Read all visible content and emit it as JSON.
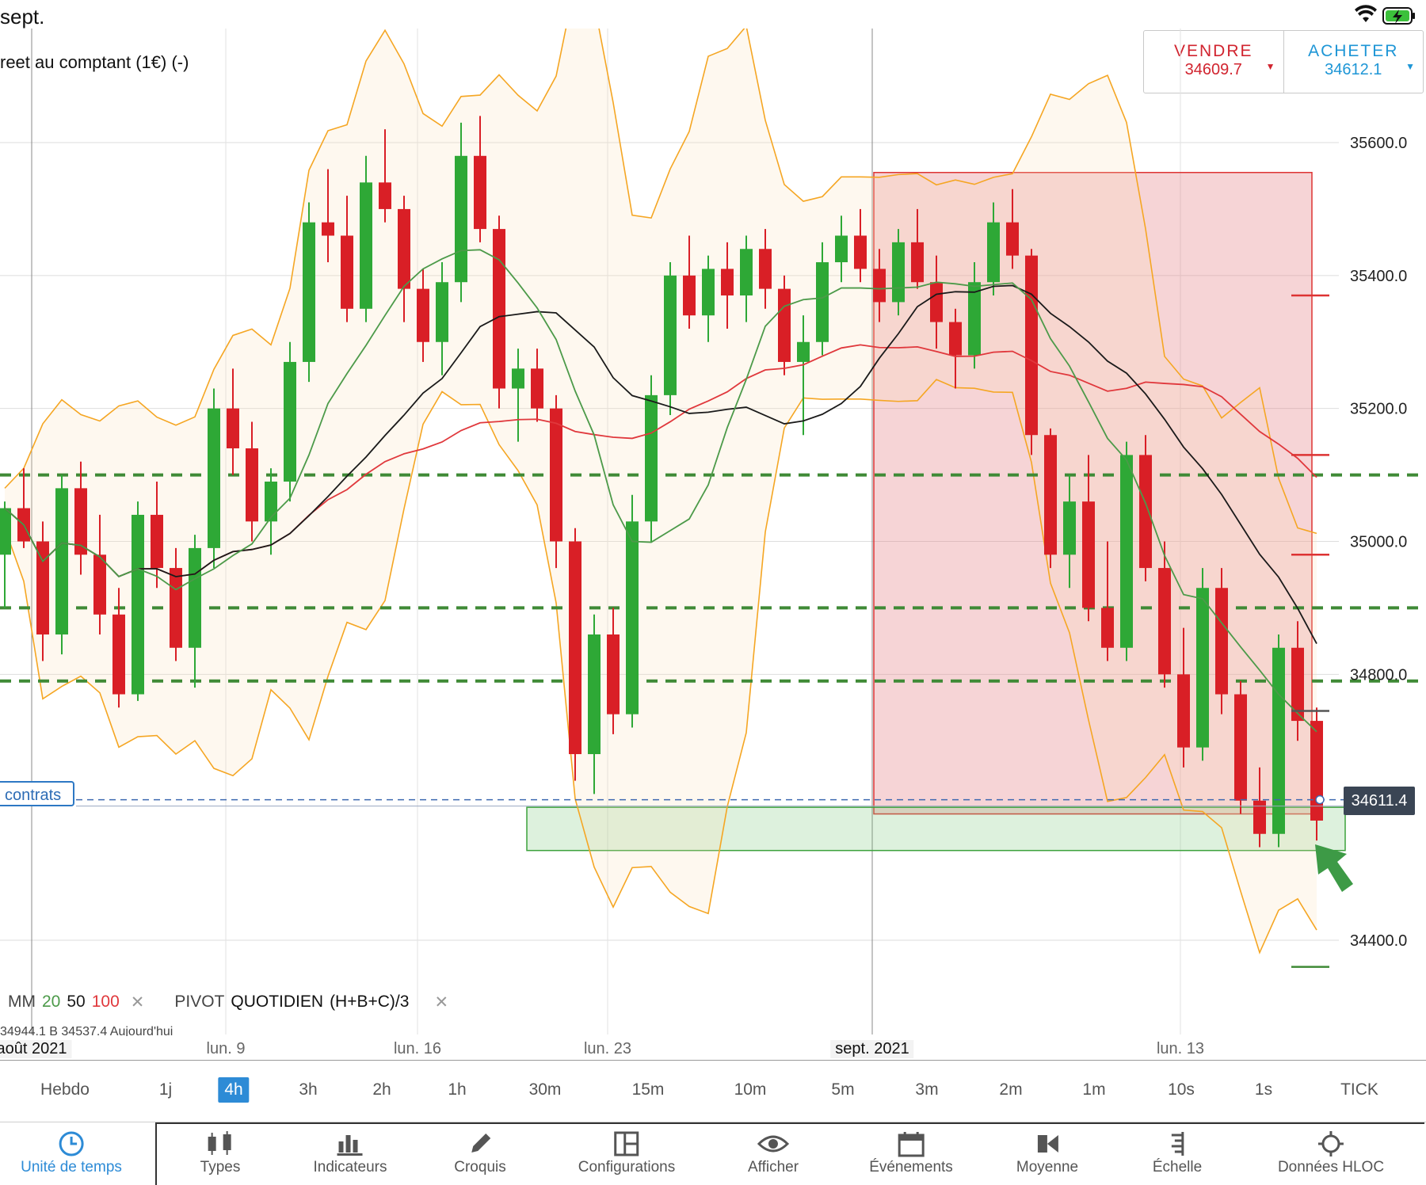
{
  "status": {
    "time": "sept."
  },
  "instrument": {
    "name": "reet au comptant (1€) (-)"
  },
  "trade": {
    "sell_label": "VENDRE",
    "sell_price": "34609.7",
    "buy_label": "ACHETER",
    "buy_price": "34612.1"
  },
  "current_price": "34611.4",
  "contracts_label": "contrats",
  "indicators": {
    "ma_label": "MM",
    "ma_20": "20",
    "ma_50": "50",
    "ma_100": "100",
    "pivot_label": "PIVOT",
    "pivot_period": "QUOTIDIEN",
    "pivot_formula": "(H+B+C)/3",
    "remove": "✕",
    "hloc_info": "34944.1   B 34537.4   Aujourd'hui"
  },
  "date_axis": [
    "août 2021",
    "lun. 9",
    "lun. 16",
    "lun. 23",
    "sept. 2021",
    "lun. 13"
  ],
  "timeframes": [
    "Hebdo",
    "1j",
    "4h",
    "3h",
    "2h",
    "1h",
    "30m",
    "15m",
    "10m",
    "5m",
    "3m",
    "2m",
    "1m",
    "10s",
    "1s",
    "TICK"
  ],
  "timeframe_selected": "4h",
  "toolbar": [
    "Unité de temps",
    "Types",
    "Indicateurs",
    "Croquis",
    "Configurations",
    "Afficher",
    "Événements",
    "Moyenne",
    "Échelle",
    "Données HLOC"
  ],
  "colors": {
    "bull": "#2ea836",
    "bear": "#d91f26",
    "bollinger": "#f5a623",
    "ma20": "#4c9a49",
    "ma50": "#1a1a1a",
    "ma100": "#e0383c",
    "accent": "#2d8bd6"
  },
  "chart_data": {
    "type": "candlestick",
    "timeframe": "4h",
    "y_ticks": [
      35600.0,
      35400.0,
      35200.0,
      35000.0,
      34800.0,
      34400.0
    ],
    "ylim": [
      34300,
      35780
    ],
    "pivot_levels": [
      35100,
      34900,
      34790
    ],
    "sell_zone": [
      34590,
      35555
    ],
    "demand_zone": [
      34535,
      34600
    ],
    "current_price": 34611.4,
    "candles_ohlc": [
      [
        34980,
        35060,
        34900,
        35050
      ],
      [
        35050,
        35110,
        34990,
        35000
      ],
      [
        35000,
        35030,
        34820,
        34860
      ],
      [
        34860,
        35100,
        34830,
        35080
      ],
      [
        35080,
        35120,
        34950,
        34980
      ],
      [
        34980,
        35040,
        34860,
        34890
      ],
      [
        34890,
        34930,
        34750,
        34770
      ],
      [
        34770,
        35060,
        34760,
        35040
      ],
      [
        35040,
        35090,
        34930,
        34960
      ],
      [
        34960,
        34990,
        34820,
        34840
      ],
      [
        34840,
        35010,
        34780,
        34990
      ],
      [
        34990,
        35230,
        34960,
        35200
      ],
      [
        35200,
        35260,
        35100,
        35140
      ],
      [
        35140,
        35180,
        35000,
        35030
      ],
      [
        35030,
        35110,
        34980,
        35090
      ],
      [
        35090,
        35300,
        35060,
        35270
      ],
      [
        35270,
        35510,
        35240,
        35480
      ],
      [
        35480,
        35560,
        35420,
        35460
      ],
      [
        35460,
        35520,
        35330,
        35350
      ],
      [
        35350,
        35580,
        35330,
        35540
      ],
      [
        35540,
        35620,
        35480,
        35500
      ],
      [
        35500,
        35520,
        35330,
        35380
      ],
      [
        35380,
        35410,
        35270,
        35300
      ],
      [
        35300,
        35420,
        35250,
        35390
      ],
      [
        35390,
        35630,
        35360,
        35580
      ],
      [
        35580,
        35640,
        35450,
        35470
      ],
      [
        35470,
        35490,
        35200,
        35230
      ],
      [
        35230,
        35290,
        35150,
        35260
      ],
      [
        35260,
        35290,
        35180,
        35200
      ],
      [
        35200,
        35220,
        34960,
        35000
      ],
      [
        35000,
        35020,
        34640,
        34680
      ],
      [
        34680,
        34890,
        34620,
        34860
      ],
      [
        34860,
        34900,
        34710,
        34740
      ],
      [
        34740,
        35070,
        34720,
        35030
      ],
      [
        35030,
        35250,
        35000,
        35220
      ],
      [
        35220,
        35420,
        35190,
        35400
      ],
      [
        35400,
        35460,
        35320,
        35340
      ],
      [
        35340,
        35430,
        35300,
        35410
      ],
      [
        35410,
        35450,
        35320,
        35370
      ],
      [
        35370,
        35460,
        35330,
        35440
      ],
      [
        35440,
        35470,
        35350,
        35380
      ],
      [
        35380,
        35400,
        35250,
        35270
      ],
      [
        35270,
        35340,
        35160,
        35300
      ],
      [
        35300,
        35450,
        35280,
        35420
      ],
      [
        35420,
        35490,
        35390,
        35460
      ],
      [
        35460,
        35500,
        35390,
        35410
      ],
      [
        35410,
        35440,
        35330,
        35360
      ],
      [
        35360,
        35470,
        35340,
        35450
      ],
      [
        35450,
        35500,
        35380,
        35390
      ],
      [
        35390,
        35430,
        35290,
        35330
      ],
      [
        35330,
        35350,
        35230,
        35280
      ],
      [
        35280,
        35420,
        35260,
        35390
      ],
      [
        35390,
        35510,
        35370,
        35480
      ],
      [
        35480,
        35530,
        35410,
        35430
      ],
      [
        35430,
        35440,
        35130,
        35160
      ],
      [
        35160,
        35170,
        34960,
        34980
      ],
      [
        34980,
        35100,
        34930,
        35060
      ],
      [
        35060,
        35130,
        34880,
        34900
      ],
      [
        34900,
        35000,
        34820,
        34840
      ],
      [
        34840,
        35150,
        34820,
        35130
      ],
      [
        35130,
        35160,
        34940,
        34960
      ],
      [
        34960,
        35000,
        34780,
        34800
      ],
      [
        34800,
        34870,
        34660,
        34690
      ],
      [
        34690,
        34960,
        34670,
        34930
      ],
      [
        34930,
        34960,
        34740,
        34770
      ],
      [
        34770,
        34790,
        34590,
        34610
      ],
      [
        34610,
        34660,
        34540,
        34560
      ],
      [
        34560,
        34860,
        34540,
        34840
      ],
      [
        34840,
        34880,
        34700,
        34730
      ],
      [
        34730,
        34750,
        34550,
        34580
      ]
    ]
  }
}
